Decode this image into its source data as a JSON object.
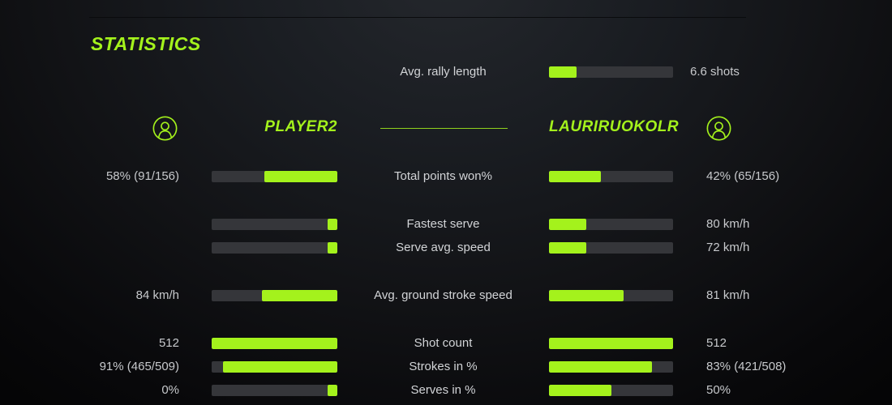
{
  "theme": {
    "accent": "#a4f21c",
    "bar_track": "#35363a",
    "value_text": "#c7c9cc",
    "label_text": "#d2d4d7",
    "background_line": "#0a0b0d"
  },
  "header": {
    "title": "STATISTICS"
  },
  "players": {
    "left": {
      "name": "PLAYER2",
      "icon": "person-icon"
    },
    "right": {
      "name": "LAURIRUOKOLR",
      "icon": "person-icon"
    }
  },
  "rally": {
    "label": "Avg. rally length",
    "right_value": "6.6 shots",
    "right_fill_pct": 22
  },
  "stats": [
    {
      "label": "Total points won%",
      "left_value": "58% (91/156)",
      "left_fill_pct": 58,
      "right_fill_pct": 42,
      "right_value": "42% (65/156)"
    },
    {
      "label": "Fastest serve",
      "left_value": "",
      "left_fill_pct": 8,
      "right_fill_pct": 30,
      "right_value": "80 km/h"
    },
    {
      "label": "Serve avg. speed",
      "left_value": "",
      "left_fill_pct": 8,
      "right_fill_pct": 30,
      "right_value": "72 km/h"
    },
    {
      "label": "Avg. ground stroke speed",
      "left_value": "84 km/h",
      "left_fill_pct": 60,
      "right_fill_pct": 60,
      "right_value": "81 km/h"
    },
    {
      "label": "Shot count",
      "left_value": "512",
      "left_fill_pct": 100,
      "right_fill_pct": 100,
      "right_value": "512"
    },
    {
      "label": "Strokes in %",
      "left_value": "91% (465/509)",
      "left_fill_pct": 91,
      "right_fill_pct": 83,
      "right_value": "83% (421/508)"
    },
    {
      "label": "Serves in %",
      "left_value": "0%",
      "left_fill_pct": 8,
      "right_fill_pct": 50,
      "right_value": "50%"
    }
  ]
}
